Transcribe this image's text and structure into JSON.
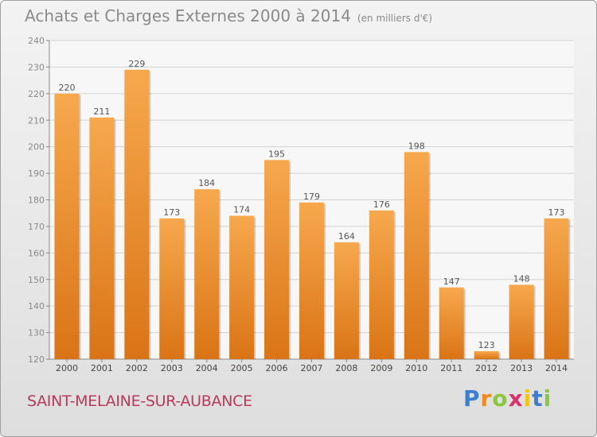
{
  "chart_data": {
    "type": "bar",
    "title": "Achats et Charges Externes 2000 à 2014",
    "subtitle": "(en milliers d'€)",
    "categories": [
      "2000",
      "2001",
      "2002",
      "2003",
      "2004",
      "2005",
      "2006",
      "2007",
      "2008",
      "2009",
      "2010",
      "2011",
      "2012",
      "2013",
      "2014"
    ],
    "values": [
      220,
      211,
      229,
      173,
      184,
      174,
      195,
      179,
      164,
      176,
      198,
      147,
      123,
      148,
      173
    ],
    "ylim": [
      120,
      240
    ],
    "yticks": [
      120,
      130,
      140,
      150,
      160,
      170,
      180,
      190,
      200,
      210,
      220,
      230,
      240
    ],
    "grid": true,
    "colors": {
      "bar_light": "#f7a84d",
      "bar_dark": "#d97416",
      "text": "#8a8a8a"
    }
  },
  "location": "SAINT-MELAINE-SUR-AUBANCE",
  "brand": {
    "letters": [
      "P",
      "r",
      "o",
      "x",
      "i",
      "t",
      "i"
    ],
    "colors": [
      "#3a7fd1",
      "#f08a1e",
      "#8cc63e",
      "#d6336c",
      "#f0c419",
      "#3a7fd1",
      "#8cc63e"
    ]
  }
}
